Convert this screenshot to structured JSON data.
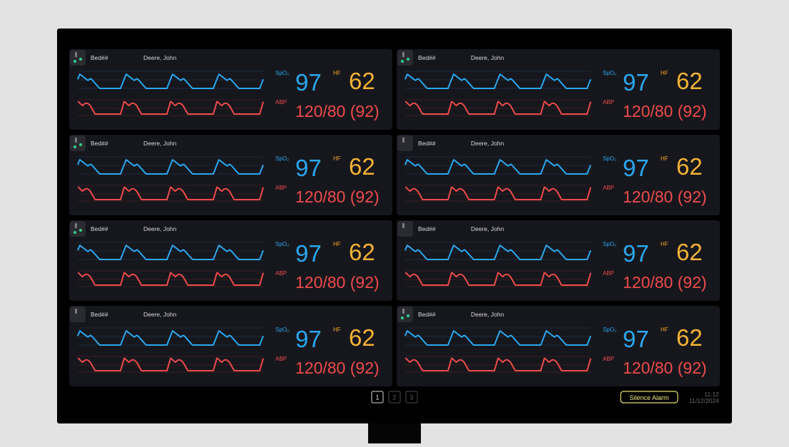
{
  "panels": [
    {
      "bed": "Bed##",
      "patient": "Deere, John",
      "spo2_label": "SpO₂",
      "spo2": 97,
      "hf_label": "HF",
      "hf": 62,
      "abp_label": "ABP",
      "abp": "120/80 (92)"
    },
    {
      "bed": "Bed##",
      "patient": "Deere, John",
      "spo2_label": "SpO₂",
      "spo2": 97,
      "hf_label": "HF",
      "hf": 62,
      "abp_label": "ABP",
      "abp": "120/80 (92)"
    },
    {
      "bed": "Bed##",
      "patient": "Deere, John",
      "spo2_label": "SpO₂",
      "spo2": 97,
      "hf_label": "HF",
      "hf": 62,
      "abp_label": "ABP",
      "abp": "120/80 (92)"
    },
    {
      "bed": "Bed##",
      "patient": "Deere, John",
      "spo2_label": "SpO₂",
      "spo2": 97,
      "hf_label": "HF",
      "hf": 62,
      "abp_label": "ABP",
      "abp": "120/80 (92)"
    },
    {
      "bed": "Bed##",
      "patient": "Deere, John",
      "spo2_label": "SpO₂",
      "spo2": 97,
      "hf_label": "HF",
      "hf": 62,
      "abp_label": "ABP",
      "abp": "120/80 (92)"
    },
    {
      "bed": "Bed##",
      "patient": "Deere, John",
      "spo2_label": "SpO₂",
      "spo2": 97,
      "hf_label": "HF",
      "hf": 62,
      "abp_label": "ABP",
      "abp": "120/80 (92)"
    },
    {
      "bed": "Bed##",
      "patient": "Deere, John",
      "spo2_label": "SpO₂",
      "spo2": 97,
      "hf_label": "HF",
      "hf": 62,
      "abp_label": "ABP",
      "abp": "120/80 (92)"
    },
    {
      "bed": "Bed##",
      "patient": "Deere, John",
      "spo2_label": "SpO₂",
      "spo2": 97,
      "hf_label": "HF",
      "hf": 62,
      "abp_label": "ABP",
      "abp": "120/80 (92)"
    }
  ],
  "pagination": [
    "1",
    "2",
    "3"
  ],
  "silence_button": "Silence Alarm",
  "clock": {
    "time": "11:12",
    "date": "11/12/2024"
  }
}
